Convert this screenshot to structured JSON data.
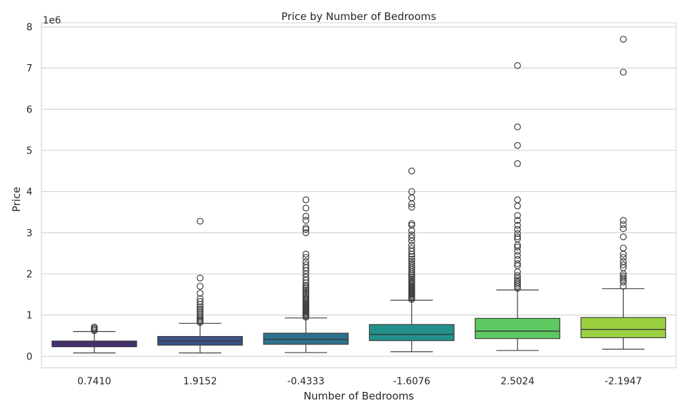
{
  "chart_data": {
    "type": "box",
    "title": "Price by Number of Bedrooms",
    "xlabel": "Number of Bedrooms",
    "ylabel": "Price",
    "y_multiplier_label": "1e6",
    "ylim": [
      -0.28,
      8.1
    ],
    "yticks": [
      0,
      1,
      2,
      3,
      4,
      5,
      6,
      7,
      8
    ],
    "grid": true,
    "categories": [
      "0.7410",
      "1.9152",
      "-0.4333",
      "-1.6076",
      "2.5024",
      "-2.1947"
    ],
    "colors": [
      "#472d7b",
      "#3b528b",
      "#2c728e",
      "#21918c",
      "#5ec962",
      "#9bd140"
    ],
    "boxes": [
      {
        "whisker_low": 0.08,
        "q1": 0.23,
        "median": 0.3,
        "q3": 0.37,
        "whisker_high": 0.6,
        "outliers": [
          0.62,
          0.65,
          0.68,
          0.71
        ]
      },
      {
        "whisker_low": 0.08,
        "q1": 0.27,
        "median": 0.37,
        "q3": 0.48,
        "whisker_high": 0.8,
        "outliers": [
          0.82,
          0.85,
          0.88,
          0.92,
          0.96,
          1.0,
          1.05,
          1.1,
          1.15,
          1.2,
          1.26,
          1.33,
          1.4,
          1.53,
          1.7,
          1.9,
          3.28
        ]
      },
      {
        "whisker_low": 0.09,
        "q1": 0.29,
        "median": 0.41,
        "q3": 0.56,
        "whisker_high": 0.93,
        "outliers": [
          0.95,
          0.98,
          1.01,
          1.04,
          1.07,
          1.1,
          1.13,
          1.16,
          1.19,
          1.22,
          1.25,
          1.28,
          1.31,
          1.34,
          1.37,
          1.4,
          1.44,
          1.48,
          1.52,
          1.56,
          1.6,
          1.64,
          1.68,
          1.72,
          1.78,
          1.85,
          1.92,
          2.0,
          2.08,
          2.15,
          2.22,
          2.3,
          2.4,
          2.48,
          3.0,
          3.08,
          3.12,
          3.3,
          3.4,
          3.6,
          3.8
        ]
      },
      {
        "whisker_low": 0.11,
        "q1": 0.38,
        "median": 0.53,
        "q3": 0.77,
        "whisker_high": 1.36,
        "outliers": [
          1.38,
          1.41,
          1.44,
          1.47,
          1.5,
          1.53,
          1.56,
          1.59,
          1.62,
          1.65,
          1.68,
          1.71,
          1.74,
          1.77,
          1.8,
          1.84,
          1.88,
          1.92,
          1.96,
          2.0,
          2.05,
          2.1,
          2.15,
          2.2,
          2.25,
          2.3,
          2.36,
          2.42,
          2.48,
          2.55,
          2.62,
          2.7,
          2.8,
          2.88,
          2.95,
          3.05,
          3.18,
          3.22,
          3.62,
          3.7,
          3.85,
          4.0,
          4.5
        ]
      },
      {
        "whisker_low": 0.14,
        "q1": 0.43,
        "median": 0.61,
        "q3": 0.92,
        "whisker_high": 1.61,
        "outliers": [
          1.65,
          1.7,
          1.75,
          1.8,
          1.85,
          1.9,
          1.96,
          2.05,
          2.2,
          2.25,
          2.35,
          2.45,
          2.55,
          2.65,
          2.7,
          2.85,
          2.9,
          2.98,
          3.08,
          3.18,
          3.3,
          3.42,
          3.65,
          3.8,
          4.68,
          5.12,
          5.57,
          7.06
        ]
      },
      {
        "whisker_low": 0.17,
        "q1": 0.45,
        "median": 0.65,
        "q3": 0.94,
        "whisker_high": 1.64,
        "outliers": [
          1.7,
          1.8,
          1.85,
          1.9,
          1.95,
          2.0,
          2.15,
          2.22,
          2.3,
          2.4,
          2.48,
          2.63,
          2.9,
          3.1,
          3.2,
          3.3,
          6.9,
          7.7
        ]
      }
    ]
  }
}
